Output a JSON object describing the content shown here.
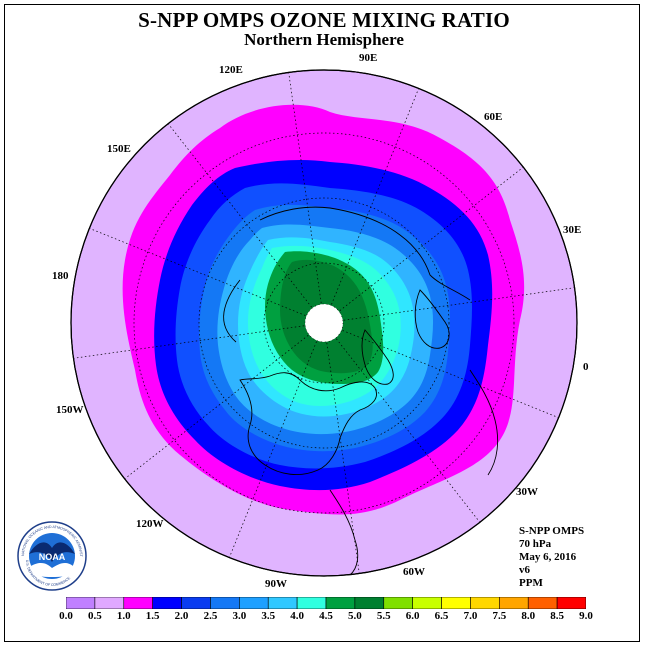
{
  "title": "S-NPP OMPS OZONE MIXING RATIO",
  "subtitle": "Northern Hemisphere",
  "longitude_labels": {
    "lon_120e": "120E",
    "lon_90e": "90E",
    "lon_60e": "60E",
    "lon_150e": "150E",
    "lon_30e": "30E",
    "lon_180": "180",
    "lon_0": "0",
    "lon_150w": "150W",
    "lon_30w": "30W",
    "lon_120w": "120W",
    "lon_60w": "60W",
    "lon_90w": "90W"
  },
  "info": {
    "instrument": "S-NPP OMPS",
    "level": "70 hPa",
    "date": "May 6, 2016",
    "version": "v6",
    "units": "PPM"
  },
  "logo": {
    "text": "NOAA",
    "ring_text": "NATIONAL OCEANIC AND ATMOSPHERIC ADMINISTRATION",
    "ring_text_bottom": "U.S. DEPARTMENT OF COMMERCE",
    "icon": "noaa-logo-icon"
  },
  "colorbar": {
    "labels": [
      "0.0",
      "0.5",
      "1.0",
      "1.5",
      "2.0",
      "2.5",
      "3.0",
      "3.5",
      "4.0",
      "4.5",
      "5.0",
      "5.5",
      "6.0",
      "6.5",
      "7.0",
      "7.5",
      "8.0",
      "8.5",
      "9.0"
    ],
    "colors": [
      "#c080ff",
      "#e0a8ff",
      "#ff00ff",
      "#0000ff",
      "#0a3cf0",
      "#1478f5",
      "#1ea0ff",
      "#30c8ff",
      "#30ffe0",
      "#00a040",
      "#008030",
      "#80e000",
      "#c8ff00",
      "#ffff00",
      "#ffd700",
      "#ffa500",
      "#ff6000",
      "#ff0000",
      "#a05030"
    ]
  },
  "map_colors": {
    "background": "#e0b4ff",
    "pink": "#ff00ff",
    "dark_blue": "#0000ff",
    "blue": "#1050ff",
    "mid_blue": "#1478f5",
    "light_blue": "#30b4ff",
    "cyan": "#30e6ff",
    "aqua": "#30ffe0",
    "green": "#00a040",
    "dark_green": "#008030",
    "pole_hole": "#ffffff"
  }
}
